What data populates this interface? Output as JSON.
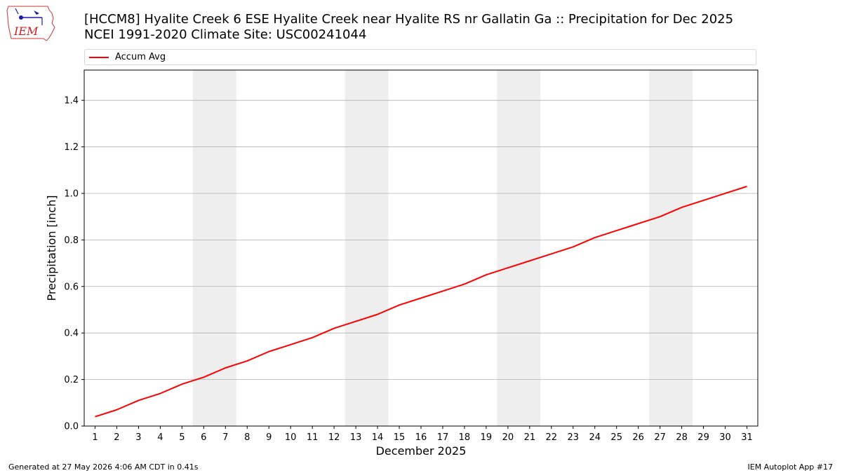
{
  "header": {
    "title_line1": "[HCCM8] Hyalite Creek 6 ESE Hyalite Creek near Hyalite RS nr Gallatin Ga :: Precipitation for Dec 2025",
    "title_line2": "NCEI 1991-2020 Climate Site: USC00241044",
    "logo_text": "IEM"
  },
  "chart_data": {
    "type": "line",
    "xlabel": "December 2025",
    "ylabel": "Precipitation [inch]",
    "x": [
      1,
      2,
      3,
      4,
      5,
      6,
      7,
      8,
      9,
      10,
      11,
      12,
      13,
      14,
      15,
      16,
      17,
      18,
      19,
      20,
      21,
      22,
      23,
      24,
      25,
      26,
      27,
      28,
      29,
      30,
      31
    ],
    "xlim": [
      0.5,
      31.5
    ],
    "ylim": [
      0,
      1.53
    ],
    "yticks": [
      0.0,
      0.2,
      0.4,
      0.6,
      0.8,
      1.0,
      1.2,
      1.4
    ],
    "ytick_labels": [
      "0.0",
      "0.2",
      "0.4",
      "0.6",
      "0.8",
      "1.0",
      "1.2",
      "1.4"
    ],
    "grid": "horizontal",
    "legend_position": "top",
    "weekend_shading": [
      [
        6,
        7
      ],
      [
        13,
        14
      ],
      [
        20,
        21
      ],
      [
        27,
        28
      ]
    ],
    "series": [
      {
        "name": "Accum Avg",
        "color": "#ff0000",
        "values": [
          0.04,
          0.07,
          0.11,
          0.14,
          0.18,
          0.21,
          0.25,
          0.28,
          0.32,
          0.35,
          0.38,
          0.42,
          0.45,
          0.48,
          0.52,
          0.55,
          0.58,
          0.61,
          0.65,
          0.68,
          0.71,
          0.74,
          0.77,
          0.81,
          0.84,
          0.87,
          0.9,
          0.94,
          0.97,
          1.0,
          1.03
        ]
      }
    ],
    "shade_color": "#eeeeee",
    "grid_color": "#b0b0b0"
  },
  "footer": {
    "left": "Generated at 27 May 2026 4:06 AM CDT in 0.41s",
    "right": "IEM Autoplot App #17"
  }
}
